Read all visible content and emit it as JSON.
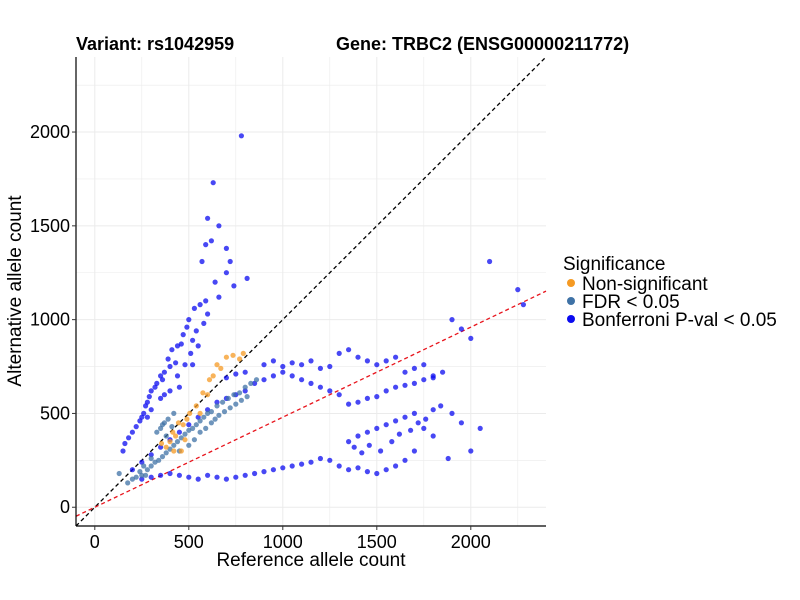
{
  "chart_data": {
    "type": "scatter",
    "title_left": "Variant: rs1042959",
    "title_right": "Gene: TRBC2 (ENSG00000211772)",
    "xlabel": "Reference allele count",
    "ylabel": "Alternative allele count",
    "xlim": [
      -100,
      2400
    ],
    "ylim": [
      -100,
      2400
    ],
    "x_ticks": [
      0,
      500,
      1000,
      1500,
      2000
    ],
    "y_ticks": [
      0,
      500,
      1000,
      1500,
      2000
    ],
    "grid": true,
    "legend_position": "right",
    "legend_title": "Significance",
    "reference_lines": [
      {
        "type": "identity",
        "slope": 1,
        "intercept": 0,
        "style": "dashed",
        "color": "#000000"
      },
      {
        "type": "fit",
        "slope": 0.48,
        "intercept": 0,
        "style": "dashed",
        "color": "#e8141c"
      }
    ],
    "series": [
      {
        "name": "Non-significant",
        "color": "#f59a23",
        "points": [
          [
            355,
            340
          ],
          [
            380,
            320
          ],
          [
            400,
            350
          ],
          [
            415,
            400
          ],
          [
            430,
            380
          ],
          [
            445,
            450
          ],
          [
            470,
            440
          ],
          [
            490,
            470
          ],
          [
            505,
            500
          ],
          [
            540,
            540
          ],
          [
            575,
            610
          ],
          [
            610,
            680
          ],
          [
            630,
            700
          ],
          [
            650,
            760
          ],
          [
            670,
            740
          ],
          [
            700,
            800
          ],
          [
            735,
            810
          ],
          [
            770,
            790
          ],
          [
            790,
            820
          ],
          [
            420,
            300
          ],
          [
            460,
            300
          ],
          [
            480,
            360
          ],
          [
            560,
            500
          ],
          [
            600,
            600
          ]
        ]
      },
      {
        "name": "FDR < 0.05",
        "color": "#3f72a6",
        "points": [
          [
            130,
            180
          ],
          [
            175,
            130
          ],
          [
            220,
            160
          ],
          [
            250,
            170
          ],
          [
            280,
            200
          ],
          [
            300,
            220
          ],
          [
            320,
            240
          ],
          [
            340,
            250
          ],
          [
            360,
            270
          ],
          [
            380,
            290
          ],
          [
            400,
            310
          ],
          [
            420,
            330
          ],
          [
            440,
            350
          ],
          [
            460,
            370
          ],
          [
            480,
            390
          ],
          [
            500,
            410
          ],
          [
            520,
            420
          ],
          [
            540,
            440
          ],
          [
            560,
            460
          ],
          [
            580,
            480
          ],
          [
            600,
            500
          ],
          [
            620,
            510
          ],
          [
            650,
            540
          ],
          [
            680,
            560
          ],
          [
            710,
            580
          ],
          [
            740,
            600
          ],
          [
            770,
            610
          ],
          [
            800,
            640
          ],
          [
            830,
            660
          ],
          [
            860,
            680
          ],
          [
            350,
            420
          ],
          [
            370,
            450
          ],
          [
            330,
            400
          ],
          [
            380,
            380
          ],
          [
            410,
            430
          ],
          [
            300,
            260
          ],
          [
            260,
            220
          ],
          [
            240,
            190
          ],
          [
            200,
            150
          ],
          [
            270,
            170
          ],
          [
            450,
            300
          ],
          [
            500,
            330
          ],
          [
            530,
            360
          ],
          [
            560,
            400
          ],
          [
            590,
            420
          ],
          [
            620,
            450
          ],
          [
            640,
            470
          ],
          [
            660,
            490
          ],
          [
            690,
            510
          ],
          [
            720,
            530
          ],
          [
            750,
            550
          ],
          [
            780,
            570
          ],
          [
            810,
            590
          ],
          [
            360,
            440
          ],
          [
            390,
            470
          ],
          [
            420,
            500
          ]
        ]
      },
      {
        "name": "Bonferroni P-val < 0.05",
        "color": "#0b0bf0",
        "points": [
          [
            780,
            1980
          ],
          [
            630,
            1730
          ],
          [
            600,
            1540
          ],
          [
            660,
            1500
          ],
          [
            620,
            1420
          ],
          [
            590,
            1400
          ],
          [
            700,
            1380
          ],
          [
            720,
            1310
          ],
          [
            570,
            1310
          ],
          [
            810,
            1220
          ],
          [
            740,
            1180
          ],
          [
            700,
            1250
          ],
          [
            640,
            1200
          ],
          [
            660,
            1120
          ],
          [
            590,
            1100
          ],
          [
            560,
            1080
          ],
          [
            530,
            1060
          ],
          [
            600,
            1030
          ],
          [
            580,
            980
          ],
          [
            500,
            1000
          ],
          [
            490,
            960
          ],
          [
            540,
            940
          ],
          [
            470,
            920
          ],
          [
            520,
            890
          ],
          [
            460,
            870
          ],
          [
            440,
            860
          ],
          [
            410,
            840
          ],
          [
            390,
            790
          ],
          [
            430,
            770
          ],
          [
            400,
            750
          ],
          [
            370,
            720
          ],
          [
            350,
            700
          ],
          [
            360,
            680
          ],
          [
            330,
            660
          ],
          [
            320,
            640
          ],
          [
            300,
            620
          ],
          [
            290,
            590
          ],
          [
            280,
            560
          ],
          [
            270,
            540
          ],
          [
            260,
            500
          ],
          [
            250,
            480
          ],
          [
            240,
            460
          ],
          [
            220,
            430
          ],
          [
            200,
            400
          ],
          [
            180,
            370
          ],
          [
            160,
            340
          ],
          [
            150,
            300
          ],
          [
            370,
            600
          ],
          [
            400,
            620
          ],
          [
            440,
            700
          ],
          [
            480,
            760
          ],
          [
            510,
            820
          ],
          [
            550,
            860
          ],
          [
            520,
            760
          ],
          [
            450,
            640
          ],
          [
            350,
            580
          ],
          [
            300,
            520
          ],
          [
            280,
            480
          ],
          [
            700,
            690
          ],
          [
            750,
            710
          ],
          [
            800,
            720
          ],
          [
            900,
            760
          ],
          [
            950,
            780
          ],
          [
            1000,
            750
          ],
          [
            1050,
            770
          ],
          [
            1100,
            760
          ],
          [
            1150,
            780
          ],
          [
            1200,
            740
          ],
          [
            1250,
            750
          ],
          [
            1300,
            820
          ],
          [
            1350,
            840
          ],
          [
            1400,
            800
          ],
          [
            1450,
            780
          ],
          [
            1500,
            760
          ],
          [
            1550,
            780
          ],
          [
            1600,
            800
          ],
          [
            1650,
            720
          ],
          [
            1700,
            740
          ],
          [
            1750,
            760
          ],
          [
            1800,
            700
          ],
          [
            1850,
            720
          ],
          [
            1900,
            1000
          ],
          [
            1950,
            950
          ],
          [
            2000,
            900
          ],
          [
            2100,
            1310
          ],
          [
            2250,
            1160
          ],
          [
            2280,
            1080
          ],
          [
            1900,
            500
          ],
          [
            1950,
            450
          ],
          [
            2050,
            420
          ],
          [
            2000,
            300
          ],
          [
            1880,
            260
          ],
          [
            1800,
            380
          ],
          [
            1750,
            420
          ],
          [
            1700,
            300
          ],
          [
            1650,
            250
          ],
          [
            1600,
            220
          ],
          [
            1550,
            200
          ],
          [
            1500,
            180
          ],
          [
            1450,
            190
          ],
          [
            1400,
            210
          ],
          [
            1350,
            200
          ],
          [
            1300,
            220
          ],
          [
            1250,
            250
          ],
          [
            1200,
            260
          ],
          [
            1150,
            240
          ],
          [
            1100,
            230
          ],
          [
            1050,
            220
          ],
          [
            1000,
            210
          ],
          [
            950,
            200
          ],
          [
            900,
            190
          ],
          [
            850,
            180
          ],
          [
            800,
            170
          ],
          [
            750,
            160
          ],
          [
            700,
            150
          ],
          [
            650,
            160
          ],
          [
            600,
            170
          ],
          [
            550,
            150
          ],
          [
            500,
            160
          ],
          [
            450,
            170
          ],
          [
            400,
            180
          ],
          [
            350,
            170
          ],
          [
            300,
            160
          ],
          [
            250,
            150
          ],
          [
            1350,
            350
          ],
          [
            1400,
            380
          ],
          [
            1450,
            400
          ],
          [
            1500,
            420
          ],
          [
            1550,
            440
          ],
          [
            1600,
            460
          ],
          [
            1650,
            480
          ],
          [
            1700,
            500
          ],
          [
            1380,
            320
          ],
          [
            1420,
            290
          ],
          [
            1460,
            330
          ],
          [
            1520,
            300
          ],
          [
            1580,
            350
          ],
          [
            1620,
            390
          ],
          [
            1680,
            410
          ],
          [
            1720,
            450
          ],
          [
            1760,
            470
          ],
          [
            1800,
            520
          ],
          [
            1840,
            540
          ],
          [
            1300,
            600
          ],
          [
            1250,
            620
          ],
          [
            1200,
            640
          ],
          [
            1150,
            660
          ],
          [
            1100,
            680
          ],
          [
            1050,
            700
          ],
          [
            1000,
            720
          ],
          [
            950,
            700
          ],
          [
            900,
            680
          ],
          [
            850,
            660
          ],
          [
            800,
            620
          ],
          [
            750,
            600
          ],
          [
            700,
            580
          ],
          [
            650,
            560
          ],
          [
            600,
            520
          ],
          [
            550,
            480
          ],
          [
            500,
            440
          ],
          [
            450,
            400
          ],
          [
            400,
            360
          ],
          [
            350,
            320
          ],
          [
            300,
            280
          ],
          [
            250,
            240
          ],
          [
            200,
            200
          ],
          [
            1350,
            550
          ],
          [
            1400,
            560
          ],
          [
            1450,
            580
          ],
          [
            1500,
            590
          ],
          [
            1550,
            620
          ],
          [
            1600,
            640
          ],
          [
            1650,
            650
          ],
          [
            1700,
            660
          ],
          [
            1750,
            680
          ],
          [
            1800,
            690
          ]
        ]
      }
    ]
  }
}
